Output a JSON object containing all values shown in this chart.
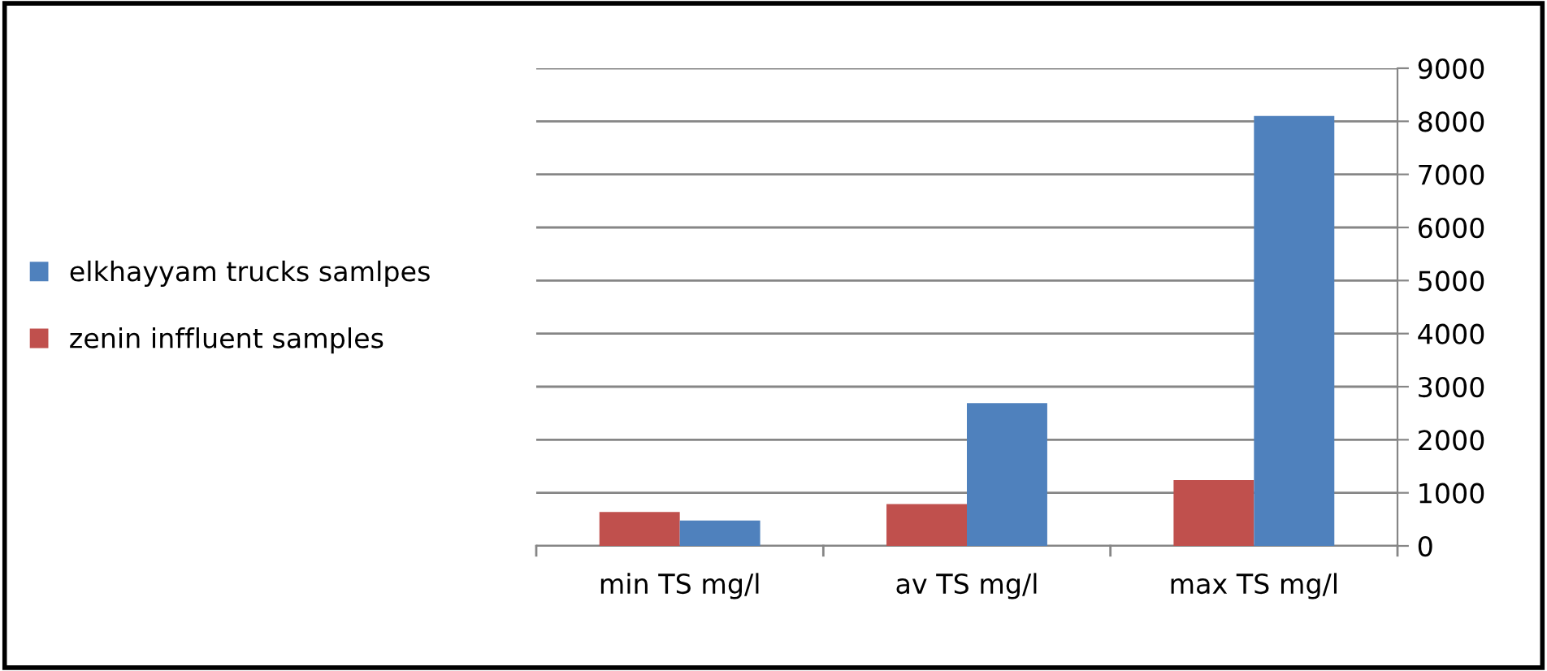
{
  "chart_data": {
    "type": "bar",
    "categories": [
      "min TS mg/l",
      "av TS mg/l",
      "max TS mg/l"
    ],
    "series": [
      {
        "name": "zenin inffluent samples",
        "color": "#c0504d",
        "values": [
          640,
          790,
          1240
        ]
      },
      {
        "name": "elkhayyam trucks samlpes",
        "color": "#4f81bd",
        "values": [
          480,
          2690,
          8100
        ]
      }
    ],
    "ylim": [
      0,
      9000
    ],
    "yticks": [
      0,
      1000,
      2000,
      3000,
      4000,
      5000,
      6000,
      7000,
      8000,
      9000
    ],
    "grid": "y",
    "legend": "left"
  }
}
